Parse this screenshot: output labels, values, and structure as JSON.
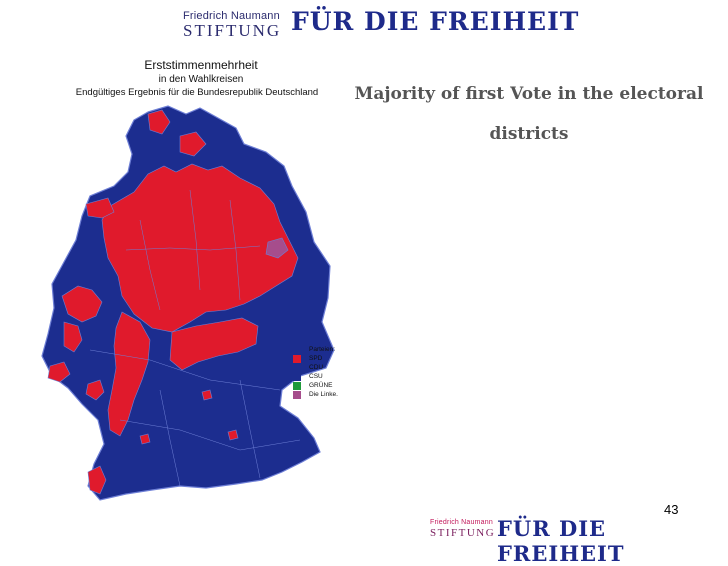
{
  "header": {
    "logo_line1": "Friedrich Naumann",
    "logo_line2": "STIFTUNG",
    "slogan": "FÜR DIE FREIHEIT"
  },
  "map_title": {
    "line1": "Erststimmenmehrheit",
    "line2": "in den Wahlkreisen",
    "line3": "Endgültiges Ergebnis für die Bundesrepublik Deutschland"
  },
  "slide_title": "Majority of first Vote in the electoral districts",
  "legend": {
    "heading": "Parteien:",
    "items": [
      {
        "label": "SPD",
        "color": "#e01a2c"
      },
      {
        "label": "CDU",
        "color": "#1c2d8f"
      },
      {
        "label": "CSU",
        "color": "#1c2d8f"
      },
      {
        "label": "GRÜNE",
        "color": "#1f9a3a"
      },
      {
        "label": "Die Linke.",
        "color": "#a64d8c"
      }
    ]
  },
  "map_colors": {
    "cdu_csu": "#1c2d8f",
    "spd": "#e01a2c",
    "border": "#6e7fd6"
  },
  "page_number": "43",
  "footer": {
    "logo_line1": "Friedrich Naumann",
    "logo_line2": "STIFTUNG",
    "slogan": "FÜR DIE FREIHEIT"
  }
}
